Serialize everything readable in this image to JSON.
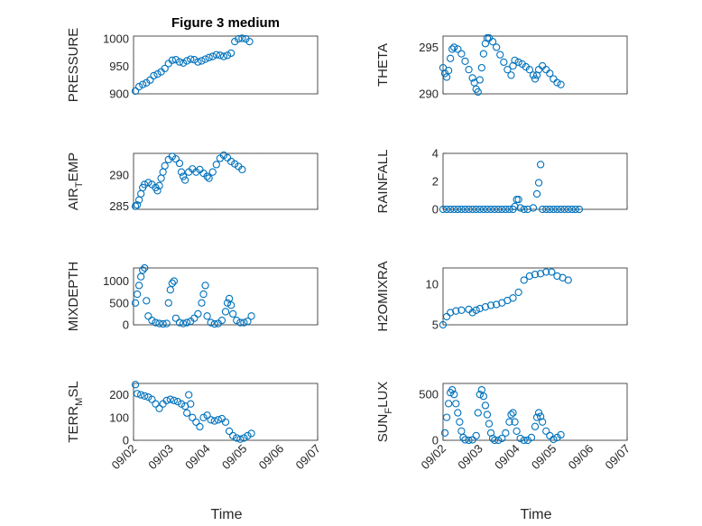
{
  "figure": {
    "title": "Figure 3 medium",
    "marker_color": "#0072BD",
    "x_tick_labels": [
      "09/02",
      "09/03",
      "09/04",
      "09/05",
      "09/06",
      "09/07"
    ],
    "xlabel": "Time"
  },
  "chart_data": [
    {
      "type": "scatter",
      "name": "pressure",
      "ylabel_main": "PRESSURE",
      "ylabel_sub": "",
      "ylabel_tail": "",
      "ylim": [
        900,
        1005
      ],
      "yticks": [
        900,
        950,
        1000
      ],
      "points": [
        [
          0.05,
          905
        ],
        [
          0.15,
          913
        ],
        [
          0.25,
          917
        ],
        [
          0.35,
          920
        ],
        [
          0.45,
          925
        ],
        [
          0.55,
          933
        ],
        [
          0.65,
          936
        ],
        [
          0.75,
          940
        ],
        [
          0.85,
          946
        ],
        [
          0.95,
          955
        ],
        [
          1.05,
          961
        ],
        [
          1.15,
          962
        ],
        [
          1.25,
          958
        ],
        [
          1.35,
          956
        ],
        [
          1.45,
          960
        ],
        [
          1.55,
          963
        ],
        [
          1.65,
          962
        ],
        [
          1.75,
          958
        ],
        [
          1.85,
          960
        ],
        [
          1.95,
          963
        ],
        [
          2.05,
          966
        ],
        [
          2.15,
          968
        ],
        [
          2.25,
          971
        ],
        [
          2.35,
          970
        ],
        [
          2.45,
          968
        ],
        [
          2.55,
          970
        ],
        [
          2.65,
          974
        ],
        [
          2.75,
          995
        ],
        [
          2.85,
          1000
        ],
        [
          2.95,
          1001
        ],
        [
          3.05,
          1000
        ],
        [
          3.15,
          995
        ]
      ]
    },
    {
      "type": "scatter",
      "name": "theta",
      "ylabel_main": "THETA",
      "ylabel_sub": "",
      "ylabel_tail": "",
      "ylim": [
        290,
        296.2
      ],
      "yticks": [
        290,
        295
      ],
      "points": [
        [
          0.0,
          292.8
        ],
        [
          0.05,
          292.2
        ],
        [
          0.1,
          291.8
        ],
        [
          0.15,
          292.5
        ],
        [
          0.2,
          293.8
        ],
        [
          0.25,
          294.8
        ],
        [
          0.3,
          295.0
        ],
        [
          0.4,
          294.8
        ],
        [
          0.5,
          294.3
        ],
        [
          0.6,
          293.5
        ],
        [
          0.7,
          292.6
        ],
        [
          0.8,
          291.7
        ],
        [
          0.85,
          291.2
        ],
        [
          0.9,
          290.5
        ],
        [
          0.95,
          290.2
        ],
        [
          1.0,
          291.5
        ],
        [
          1.05,
          292.8
        ],
        [
          1.1,
          294.3
        ],
        [
          1.15,
          295.4
        ],
        [
          1.2,
          296.0
        ],
        [
          1.25,
          296.0
        ],
        [
          1.35,
          295.6
        ],
        [
          1.45,
          295.0
        ],
        [
          1.55,
          294.2
        ],
        [
          1.65,
          293.4
        ],
        [
          1.75,
          292.6
        ],
        [
          1.85,
          292.0
        ],
        [
          1.9,
          293.0
        ],
        [
          1.95,
          293.6
        ],
        [
          2.05,
          293.4
        ],
        [
          2.15,
          293.2
        ],
        [
          2.25,
          292.9
        ],
        [
          2.35,
          292.6
        ],
        [
          2.45,
          292.0
        ],
        [
          2.5,
          291.6
        ],
        [
          2.55,
          292.0
        ],
        [
          2.6,
          292.6
        ],
        [
          2.7,
          293.0
        ],
        [
          2.8,
          292.6
        ],
        [
          2.9,
          292.2
        ],
        [
          3.0,
          291.6
        ],
        [
          3.1,
          291.2
        ],
        [
          3.2,
          291.0
        ]
      ]
    },
    {
      "type": "scatter",
      "name": "air-temp",
      "ylabel_main": "AIR",
      "ylabel_sub": "T",
      "ylabel_tail": "EMP",
      "ylim": [
        284.5,
        293.5
      ],
      "yticks": [
        285,
        290
      ],
      "points": [
        [
          0.05,
          285.0
        ],
        [
          0.1,
          285.2
        ],
        [
          0.15,
          286.0
        ],
        [
          0.2,
          287.0
        ],
        [
          0.25,
          288.0
        ],
        [
          0.3,
          288.5
        ],
        [
          0.4,
          288.8
        ],
        [
          0.5,
          288.5
        ],
        [
          0.6,
          288.0
        ],
        [
          0.65,
          287.5
        ],
        [
          0.7,
          288.3
        ],
        [
          0.75,
          289.5
        ],
        [
          0.8,
          290.5
        ],
        [
          0.85,
          291.5
        ],
        [
          0.95,
          292.5
        ],
        [
          1.05,
          293.0
        ],
        [
          1.15,
          292.6
        ],
        [
          1.25,
          291.9
        ],
        [
          1.3,
          290.5
        ],
        [
          1.35,
          289.8
        ],
        [
          1.4,
          289.2
        ],
        [
          1.5,
          290.5
        ],
        [
          1.6,
          291.0
        ],
        [
          1.7,
          290.5
        ],
        [
          1.8,
          290.9
        ],
        [
          1.9,
          290.3
        ],
        [
          2.0,
          289.8
        ],
        [
          2.05,
          289.5
        ],
        [
          2.15,
          290.5
        ],
        [
          2.25,
          291.7
        ],
        [
          2.35,
          292.7
        ],
        [
          2.45,
          293.2
        ],
        [
          2.55,
          292.8
        ],
        [
          2.65,
          292.2
        ],
        [
          2.75,
          291.8
        ],
        [
          2.85,
          291.4
        ],
        [
          2.95,
          290.9
        ]
      ]
    },
    {
      "type": "scatter",
      "name": "rainfall",
      "ylabel_main": "RAINFALL",
      "ylabel_sub": "",
      "ylabel_tail": "",
      "ylim": [
        0,
        4
      ],
      "yticks": [
        0,
        2,
        4
      ],
      "points": [
        [
          0.0,
          0
        ],
        [
          0.1,
          0
        ],
        [
          0.2,
          0
        ],
        [
          0.3,
          0
        ],
        [
          0.4,
          0
        ],
        [
          0.5,
          0
        ],
        [
          0.6,
          0
        ],
        [
          0.7,
          0
        ],
        [
          0.8,
          0
        ],
        [
          0.9,
          0
        ],
        [
          1.0,
          0
        ],
        [
          1.1,
          0
        ],
        [
          1.2,
          0
        ],
        [
          1.3,
          0
        ],
        [
          1.4,
          0
        ],
        [
          1.5,
          0
        ],
        [
          1.6,
          0
        ],
        [
          1.7,
          0
        ],
        [
          1.8,
          0
        ],
        [
          1.9,
          0
        ],
        [
          1.95,
          0.2
        ],
        [
          2.0,
          0.7
        ],
        [
          2.05,
          0.7
        ],
        [
          2.1,
          0.1
        ],
        [
          2.2,
          0
        ],
        [
          2.3,
          0
        ],
        [
          2.45,
          0.1
        ],
        [
          2.55,
          1.1
        ],
        [
          2.6,
          1.9
        ],
        [
          2.65,
          3.2
        ],
        [
          2.7,
          0
        ],
        [
          2.8,
          0
        ],
        [
          2.9,
          0
        ],
        [
          3.0,
          0
        ],
        [
          3.1,
          0
        ],
        [
          3.2,
          0
        ],
        [
          3.3,
          0
        ],
        [
          3.4,
          0
        ],
        [
          3.5,
          0
        ],
        [
          3.6,
          0
        ],
        [
          3.7,
          0
        ]
      ]
    },
    {
      "type": "scatter",
      "name": "mixdepth",
      "ylabel_main": "MIXDEPTH",
      "ylabel_sub": "",
      "ylabel_tail": "",
      "ylim": [
        0,
        1300
      ],
      "yticks": [
        0,
        500,
        1000
      ],
      "points": [
        [
          0.05,
          500
        ],
        [
          0.1,
          700
        ],
        [
          0.15,
          900
        ],
        [
          0.2,
          1100
        ],
        [
          0.25,
          1250
        ],
        [
          0.3,
          1300
        ],
        [
          0.35,
          550
        ],
        [
          0.4,
          200
        ],
        [
          0.5,
          100
        ],
        [
          0.6,
          50
        ],
        [
          0.7,
          30
        ],
        [
          0.8,
          20
        ],
        [
          0.9,
          30
        ],
        [
          0.95,
          500
        ],
        [
          1.0,
          800
        ],
        [
          1.05,
          950
        ],
        [
          1.1,
          1000
        ],
        [
          1.15,
          150
        ],
        [
          1.25,
          50
        ],
        [
          1.35,
          30
        ],
        [
          1.45,
          50
        ],
        [
          1.55,
          80
        ],
        [
          1.65,
          150
        ],
        [
          1.75,
          250
        ],
        [
          1.85,
          500
        ],
        [
          1.9,
          700
        ],
        [
          1.95,
          900
        ],
        [
          2.0,
          200
        ],
        [
          2.1,
          50
        ],
        [
          2.2,
          20
        ],
        [
          2.3,
          30
        ],
        [
          2.4,
          100
        ],
        [
          2.5,
          300
        ],
        [
          2.55,
          500
        ],
        [
          2.6,
          600
        ],
        [
          2.65,
          450
        ],
        [
          2.7,
          250
        ],
        [
          2.8,
          100
        ],
        [
          2.9,
          50
        ],
        [
          3.0,
          50
        ],
        [
          3.1,
          80
        ],
        [
          3.2,
          200
        ]
      ]
    },
    {
      "type": "scatter",
      "name": "h2o-mixing-ratio",
      "ylabel_main": "H2OMIXRA",
      "ylabel_sub": "",
      "ylabel_tail": "",
      "ylim": [
        5,
        12
      ],
      "yticks": [
        5,
        10
      ],
      "points": [
        [
          0.0,
          5.0
        ],
        [
          0.1,
          6.0
        ],
        [
          0.2,
          6.5
        ],
        [
          0.35,
          6.7
        ],
        [
          0.5,
          6.8
        ],
        [
          0.7,
          6.9
        ],
        [
          0.8,
          6.5
        ],
        [
          0.9,
          6.8
        ],
        [
          1.0,
          7.0
        ],
        [
          1.15,
          7.2
        ],
        [
          1.3,
          7.4
        ],
        [
          1.45,
          7.5
        ],
        [
          1.6,
          7.7
        ],
        [
          1.75,
          8.0
        ],
        [
          1.9,
          8.3
        ],
        [
          2.05,
          9.0
        ],
        [
          2.2,
          10.5
        ],
        [
          2.35,
          11.0
        ],
        [
          2.5,
          11.2
        ],
        [
          2.65,
          11.3
        ],
        [
          2.8,
          11.5
        ],
        [
          2.95,
          11.5
        ],
        [
          3.1,
          11.0
        ],
        [
          3.25,
          10.8
        ],
        [
          3.4,
          10.5
        ]
      ]
    },
    {
      "type": "scatter",
      "name": "terrain-msl",
      "ylabel_main": "TERR",
      "ylabel_sub": "M",
      "ylabel_tail": "SL",
      "ylim": [
        0,
        250
      ],
      "yticks": [
        0,
        100,
        200
      ],
      "points": [
        [
          0.05,
          245
        ],
        [
          0.1,
          205
        ],
        [
          0.2,
          200
        ],
        [
          0.3,
          195
        ],
        [
          0.4,
          190
        ],
        [
          0.5,
          180
        ],
        [
          0.6,
          160
        ],
        [
          0.7,
          140
        ],
        [
          0.8,
          160
        ],
        [
          0.9,
          175
        ],
        [
          1.0,
          180
        ],
        [
          1.1,
          175
        ],
        [
          1.2,
          170
        ],
        [
          1.3,
          160
        ],
        [
          1.4,
          150
        ],
        [
          1.45,
          120
        ],
        [
          1.5,
          200
        ],
        [
          1.55,
          160
        ],
        [
          1.6,
          100
        ],
        [
          1.7,
          80
        ],
        [
          1.8,
          60
        ],
        [
          1.9,
          100
        ],
        [
          2.0,
          110
        ],
        [
          2.1,
          90
        ],
        [
          2.2,
          85
        ],
        [
          2.3,
          90
        ],
        [
          2.4,
          95
        ],
        [
          2.5,
          80
        ],
        [
          2.6,
          40
        ],
        [
          2.7,
          20
        ],
        [
          2.8,
          10
        ],
        [
          2.9,
          5
        ],
        [
          3.0,
          10
        ],
        [
          3.1,
          20
        ],
        [
          3.2,
          30
        ]
      ]
    },
    {
      "type": "scatter",
      "name": "sun-flux",
      "ylabel_main": "SUN",
      "ylabel_sub": "F",
      "ylabel_tail": "LUX",
      "ylim": [
        0,
        620
      ],
      "yticks": [
        0,
        500
      ],
      "points": [
        [
          0.05,
          80
        ],
        [
          0.1,
          250
        ],
        [
          0.15,
          400
        ],
        [
          0.2,
          520
        ],
        [
          0.25,
          550
        ],
        [
          0.3,
          500
        ],
        [
          0.35,
          400
        ],
        [
          0.4,
          300
        ],
        [
          0.45,
          200
        ],
        [
          0.5,
          100
        ],
        [
          0.55,
          30
        ],
        [
          0.6,
          5
        ],
        [
          0.7,
          0
        ],
        [
          0.8,
          5
        ],
        [
          0.9,
          50
        ],
        [
          0.95,
          300
        ],
        [
          1.0,
          500
        ],
        [
          1.05,
          550
        ],
        [
          1.1,
          480
        ],
        [
          1.15,
          380
        ],
        [
          1.2,
          280
        ],
        [
          1.25,
          180
        ],
        [
          1.3,
          80
        ],
        [
          1.35,
          20
        ],
        [
          1.4,
          0
        ],
        [
          1.5,
          0
        ],
        [
          1.6,
          20
        ],
        [
          1.7,
          80
        ],
        [
          1.8,
          200
        ],
        [
          1.85,
          280
        ],
        [
          1.9,
          300
        ],
        [
          1.95,
          200
        ],
        [
          2.0,
          100
        ],
        [
          2.1,
          20
        ],
        [
          2.2,
          0
        ],
        [
          2.3,
          0
        ],
        [
          2.4,
          30
        ],
        [
          2.5,
          150
        ],
        [
          2.55,
          250
        ],
        [
          2.6,
          300
        ],
        [
          2.65,
          260
        ],
        [
          2.7,
          200
        ],
        [
          2.8,
          100
        ],
        [
          2.9,
          50
        ],
        [
          3.0,
          10
        ],
        [
          3.1,
          30
        ],
        [
          3.2,
          60
        ]
      ]
    }
  ]
}
